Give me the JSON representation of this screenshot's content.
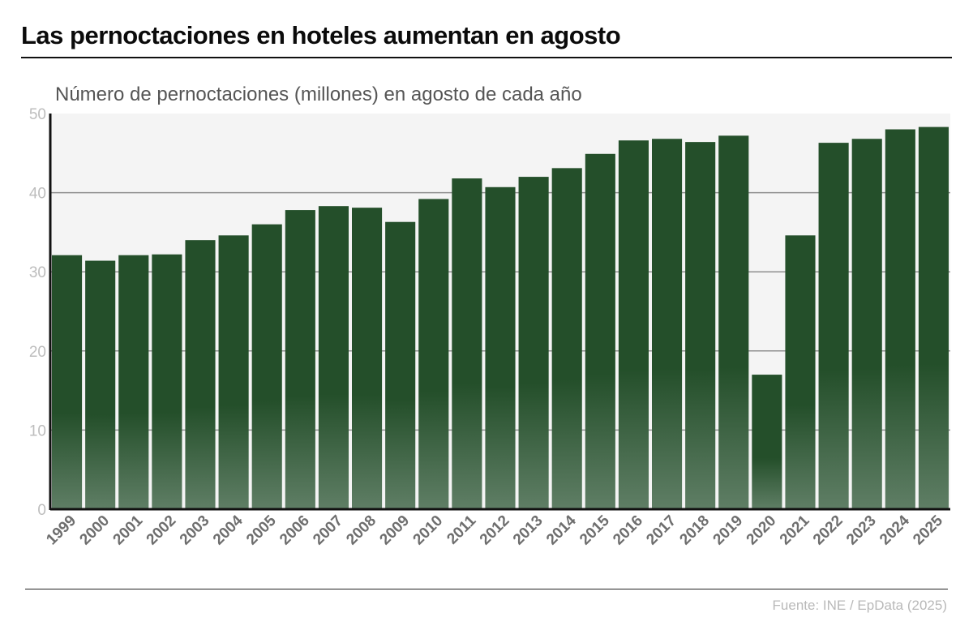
{
  "header": {
    "title": "Las pernoctaciones en hoteles aumentan en agosto",
    "subtitle": "Número de pernoctaciones (millones) en agosto de cada año"
  },
  "footer": {
    "source": "Fuente: INE / EpData (2025)"
  },
  "colors": {
    "bar_top": "#244f2a",
    "bar_bottom": "#5f7e65",
    "plot_background": "#f4f4f4",
    "gridline": "#8f8f8f",
    "tick_label": "#bdbdbd",
    "x_label": "#6e6e6e"
  },
  "chart_data": {
    "type": "bar",
    "title": "Las pernoctaciones en hoteles aumentan en agosto",
    "subtitle": "Número de pernoctaciones (millones) en agosto de cada año",
    "xlabel": "",
    "ylabel": "",
    "ylim": [
      0,
      50
    ],
    "yticks": [
      0,
      10,
      20,
      30,
      40,
      50
    ],
    "grid": true,
    "categories": [
      "1999",
      "2000",
      "2001",
      "2002",
      "2003",
      "2004",
      "2005",
      "2006",
      "2007",
      "2008",
      "2009",
      "2010",
      "2011",
      "2012",
      "2013",
      "2014",
      "2015",
      "2016",
      "2017",
      "2018",
      "2019",
      "2020",
      "2021",
      "2022",
      "2023",
      "2024",
      "2025"
    ],
    "values": [
      32.1,
      31.4,
      32.1,
      32.2,
      34.0,
      34.6,
      36.0,
      37.8,
      38.3,
      38.1,
      36.3,
      39.2,
      41.8,
      40.7,
      42.0,
      43.1,
      44.9,
      46.6,
      46.8,
      46.4,
      47.2,
      17.0,
      34.6,
      46.3,
      46.8,
      48.0,
      48.3
    ]
  }
}
